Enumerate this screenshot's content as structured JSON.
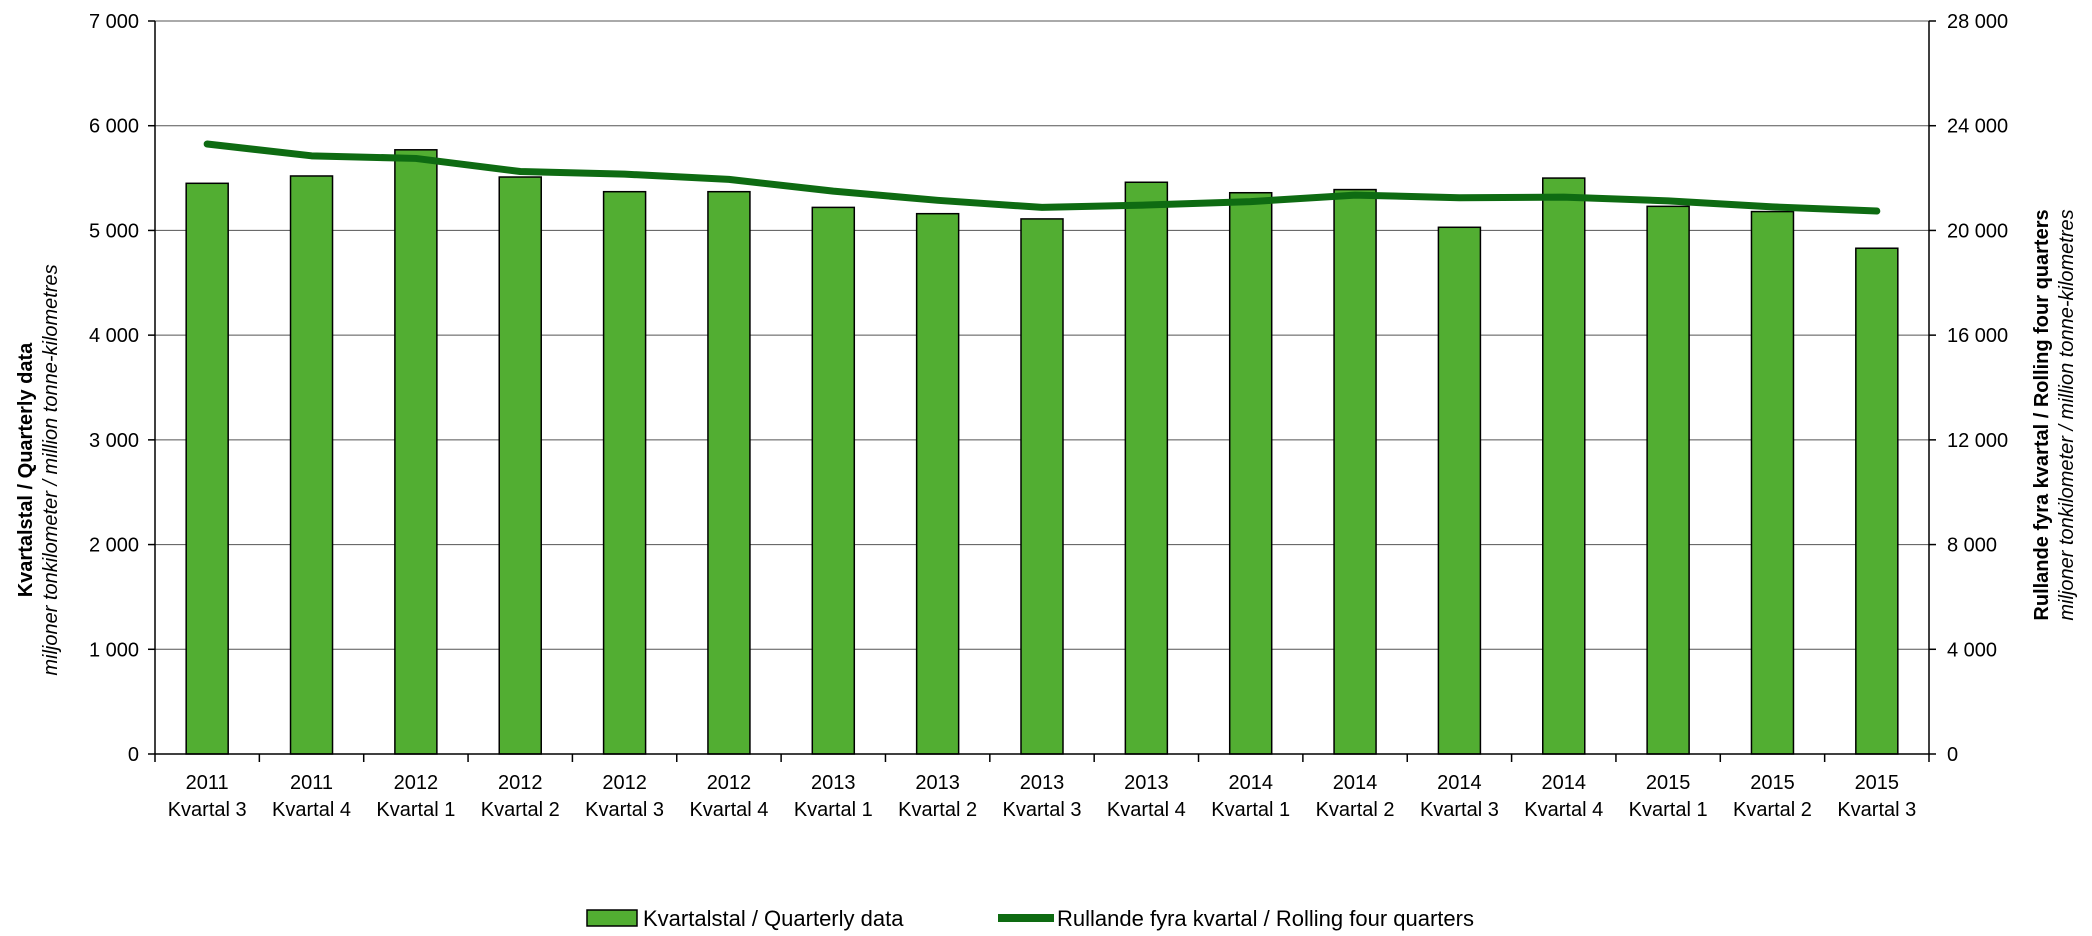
{
  "chart_data": {
    "type": "bar",
    "categories": [
      [
        "2011",
        "Kvartal 3"
      ],
      [
        "2011",
        "Kvartal 4"
      ],
      [
        "2012",
        "Kvartal 1"
      ],
      [
        "2012",
        "Kvartal 2"
      ],
      [
        "2012",
        "Kvartal 3"
      ],
      [
        "2012",
        "Kvartal 4"
      ],
      [
        "2013",
        "Kvartal 1"
      ],
      [
        "2013",
        "Kvartal 2"
      ],
      [
        "2013",
        "Kvartal 3"
      ],
      [
        "2013",
        "Kvartal 4"
      ],
      [
        "2014",
        "Kvartal 1"
      ],
      [
        "2014",
        "Kvartal 2"
      ],
      [
        "2014",
        "Kvartal 3"
      ],
      [
        "2014",
        "Kvartal 4"
      ],
      [
        "2015",
        "Kvartal 1"
      ],
      [
        "2015",
        "Kvartal 2"
      ],
      [
        "2015",
        "Kvartal 3"
      ]
    ],
    "series": [
      {
        "name": "Kvartalstal / Quarterly data",
        "type": "bar",
        "axis": "left",
        "color": "#52ae32",
        "values": [
          5450,
          5520,
          5770,
          5510,
          5370,
          5370,
          5220,
          5160,
          5110,
          5460,
          5360,
          5390,
          5030,
          5500,
          5230,
          5180,
          4830
        ]
      },
      {
        "name": "Rullande fyra kvartal / Rolling four quarters",
        "type": "line",
        "axis": "right",
        "color": "#0e6b12",
        "values": [
          23300,
          22850,
          22750,
          22250,
          22150,
          21950,
          21500,
          21150,
          20880,
          20970,
          21100,
          21350,
          21250,
          21270,
          21130,
          20900,
          20740
        ]
      }
    ],
    "y_left": {
      "title": "Kvartalstal  /  Quarterly data",
      "subtitle": "miljoner tonkilometer  / million tonne-kilometres",
      "min": 0,
      "max": 7000,
      "step": 1000,
      "ticks": [
        "0",
        "1 000",
        "2 000",
        "3 000",
        "4 000",
        "5 000",
        "6 000",
        "7 000"
      ]
    },
    "y_right": {
      "title": "Rullande fyra kvartal  /  Rolling four quarters",
      "subtitle": "miljoner tonkilometer  / million tonne-kilometres",
      "min": 0,
      "max": 28000,
      "step": 4000,
      "ticks": [
        "0",
        "4 000",
        "8 000",
        "12 000",
        "16 000",
        "20 000",
        "24 000",
        "28 000"
      ]
    },
    "grid": true,
    "legend_position": "bottom"
  }
}
